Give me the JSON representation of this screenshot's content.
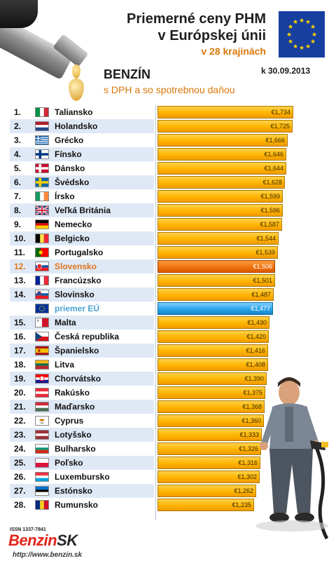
{
  "header": {
    "title_line1": "Priemerné ceny PHM",
    "title_line2": "v Európskej únii",
    "subtitle": "v 28 krajinách",
    "date": "k 30.09.2013",
    "fuel": "BENZÍN",
    "fuel_note": "s DPH a so spotrebnou daňou"
  },
  "colors": {
    "bar": "#ffb400",
    "highlight": "#f07410",
    "eu_average": "#2aa4e8",
    "row_shade": "#dfe9f6",
    "accent_text": "#d9770a"
  },
  "footer": {
    "issn": "ISSN 1337-7841",
    "logo_part1": "Benzin",
    "logo_part2": "SK",
    "url": "http://www.benzin.sk"
  },
  "chart_data": {
    "type": "bar",
    "orientation": "horizontal",
    "unit": "€",
    "xlim": [
      0,
      1.734
    ],
    "rows": [
      {
        "rank": "1.",
        "country": "Taliansko",
        "flag": "italy-flag",
        "value": 1.734,
        "label": "€1,734"
      },
      {
        "rank": "2.",
        "country": "Holandsko",
        "flag": "netherlands-flag",
        "value": 1.725,
        "label": "€1,725"
      },
      {
        "rank": "3.",
        "country": "Grécko",
        "flag": "greece-flag",
        "value": 1.666,
        "label": "€1,666"
      },
      {
        "rank": "4.",
        "country": "Fínsko",
        "flag": "finland-flag",
        "value": 1.646,
        "label": "€1,646"
      },
      {
        "rank": "5.",
        "country": "Dánsko",
        "flag": "denmark-flag",
        "value": 1.644,
        "label": "€1,644"
      },
      {
        "rank": "6.",
        "country": "Švédsko",
        "flag": "sweden-flag",
        "value": 1.628,
        "label": "€1,628"
      },
      {
        "rank": "7.",
        "country": "Írsko",
        "flag": "ireland-flag",
        "value": 1.599,
        "label": "€1,599"
      },
      {
        "rank": "8.",
        "country": "Veľká Británia",
        "flag": "uk-flag",
        "value": 1.596,
        "label": "€1,596"
      },
      {
        "rank": "9.",
        "country": "Nemecko",
        "flag": "germany-flag",
        "value": 1.587,
        "label": "€1,587"
      },
      {
        "rank": "10.",
        "country": "Belgicko",
        "flag": "belgium-flag",
        "value": 1.544,
        "label": "€1,544"
      },
      {
        "rank": "11.",
        "country": "Portugalsko",
        "flag": "portugal-flag",
        "value": 1.539,
        "label": "€1,539"
      },
      {
        "rank": "12.",
        "country": "Slovensko",
        "flag": "slovakia-flag",
        "value": 1.506,
        "label": "€1,506",
        "highlight": true
      },
      {
        "rank": "13.",
        "country": "Francúzsko",
        "flag": "france-flag",
        "value": 1.501,
        "label": "€1,501"
      },
      {
        "rank": "14.",
        "country": "Slovinsko",
        "flag": "slovenia-flag",
        "value": 1.487,
        "label": "€1,487"
      },
      {
        "rank": "",
        "country": "priemer EÚ",
        "flag": "eu-flag",
        "value": 1.477,
        "label": "€1,477",
        "average": true
      },
      {
        "rank": "15.",
        "country": "Malta",
        "flag": "malta-flag",
        "value": 1.43,
        "label": "€1,430"
      },
      {
        "rank": "16.",
        "country": "Česká republika",
        "flag": "czech-flag",
        "value": 1.42,
        "label": "€1,420"
      },
      {
        "rank": "17.",
        "country": "Španielsko",
        "flag": "spain-flag",
        "value": 1.416,
        "label": "€1,416"
      },
      {
        "rank": "18.",
        "country": "Litva",
        "flag": "lithuania-flag",
        "value": 1.408,
        "label": "€1,408"
      },
      {
        "rank": "19.",
        "country": "Chorvátsko",
        "flag": "croatia-flag",
        "value": 1.39,
        "label": "€1,390"
      },
      {
        "rank": "20.",
        "country": "Rakúsko",
        "flag": "austria-flag",
        "value": 1.375,
        "label": "€1,375"
      },
      {
        "rank": "21.",
        "country": "Maďarsko",
        "flag": "hungary-flag",
        "value": 1.368,
        "label": "€1,368"
      },
      {
        "rank": "22.",
        "country": "Cyprus",
        "flag": "cyprus-flag",
        "value": 1.36,
        "label": "€1,360"
      },
      {
        "rank": "23.",
        "country": "Lotyšsko",
        "flag": "latvia-flag",
        "value": 1.333,
        "label": "€1,333"
      },
      {
        "rank": "24.",
        "country": "Bulharsko",
        "flag": "bulgaria-flag",
        "value": 1.326,
        "label": "€1,326"
      },
      {
        "rank": "25.",
        "country": "Poľsko",
        "flag": "poland-flag",
        "value": 1.316,
        "label": "€1,316"
      },
      {
        "rank": "26.",
        "country": "Luxembursko",
        "flag": "luxembourg-flag",
        "value": 1.302,
        "label": "€1,302"
      },
      {
        "rank": "27.",
        "country": "Estónsko",
        "flag": "estonia-flag",
        "value": 1.262,
        "label": "€1,262"
      },
      {
        "rank": "28.",
        "country": "Rumunsko",
        "flag": "romania-flag",
        "value": 1.235,
        "label": "€1,235"
      }
    ]
  }
}
